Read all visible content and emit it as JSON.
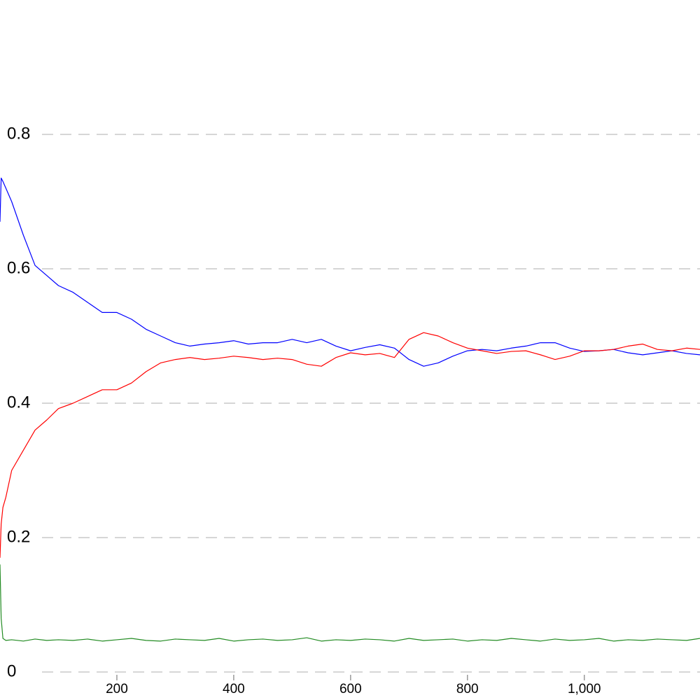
{
  "chart_data": {
    "type": "line",
    "x": [
      0,
      2,
      5,
      10,
      20,
      40,
      60,
      80,
      100,
      125,
      150,
      175,
      200,
      225,
      250,
      275,
      300,
      325,
      350,
      375,
      400,
      425,
      450,
      475,
      500,
      525,
      550,
      575,
      600,
      625,
      650,
      675,
      700,
      725,
      750,
      775,
      800,
      825,
      850,
      875,
      900,
      925,
      950,
      975,
      1000,
      1025,
      1050,
      1075,
      1100,
      1125,
      1150,
      1175,
      1198
    ],
    "series": [
      {
        "color": "#0000ff",
        "values": [
          0.67,
          0.735,
          0.73,
          0.72,
          0.7,
          0.65,
          0.605,
          0.59,
          0.575,
          0.565,
          0.55,
          0.535,
          0.535,
          0.525,
          0.51,
          0.5,
          0.49,
          0.485,
          0.488,
          0.49,
          0.493,
          0.488,
          0.49,
          0.49,
          0.495,
          0.49,
          0.495,
          0.485,
          0.478,
          0.483,
          0.487,
          0.482,
          0.465,
          0.455,
          0.46,
          0.47,
          0.478,
          0.48,
          0.478,
          0.482,
          0.485,
          0.49,
          0.49,
          0.482,
          0.477,
          0.478,
          0.48,
          0.475,
          0.472,
          0.475,
          0.478,
          0.474,
          0.472
        ]
      },
      {
        "color": "#ff0000",
        "values": [
          0.17,
          0.22,
          0.245,
          0.26,
          0.3,
          0.33,
          0.36,
          0.375,
          0.392,
          0.4,
          0.41,
          0.42,
          0.42,
          0.43,
          0.447,
          0.46,
          0.465,
          0.468,
          0.465,
          0.467,
          0.47,
          0.468,
          0.465,
          0.467,
          0.465,
          0.458,
          0.455,
          0.468,
          0.475,
          0.472,
          0.474,
          0.468,
          0.495,
          0.505,
          0.5,
          0.49,
          0.482,
          0.478,
          0.474,
          0.477,
          0.478,
          0.472,
          0.465,
          0.47,
          0.478,
          0.478,
          0.48,
          0.485,
          0.488,
          0.48,
          0.478,
          0.482,
          0.48
        ]
      },
      {
        "color": "#228b22",
        "values": [
          0.16,
          0.08,
          0.05,
          0.047,
          0.048,
          0.046,
          0.049,
          0.047,
          0.048,
          0.047,
          0.049,
          0.046,
          0.048,
          0.05,
          0.047,
          0.046,
          0.049,
          0.048,
          0.047,
          0.05,
          0.046,
          0.048,
          0.049,
          0.047,
          0.048,
          0.051,
          0.046,
          0.048,
          0.047,
          0.049,
          0.048,
          0.046,
          0.05,
          0.047,
          0.048,
          0.049,
          0.046,
          0.048,
          0.047,
          0.05,
          0.048,
          0.046,
          0.049,
          0.047,
          0.048,
          0.05,
          0.046,
          0.048,
          0.047,
          0.049,
          0.048,
          0.047,
          0.05
        ]
      }
    ],
    "xlim": [
      0,
      1198
    ],
    "xticks": [
      200,
      400,
      600,
      800,
      {
        "value": 1000,
        "label": "1,000"
      }
    ],
    "ylim": [
      0,
      1
    ],
    "yticks": [
      0,
      0.2,
      0.4,
      0.6,
      0.8
    ],
    "grid": true
  }
}
